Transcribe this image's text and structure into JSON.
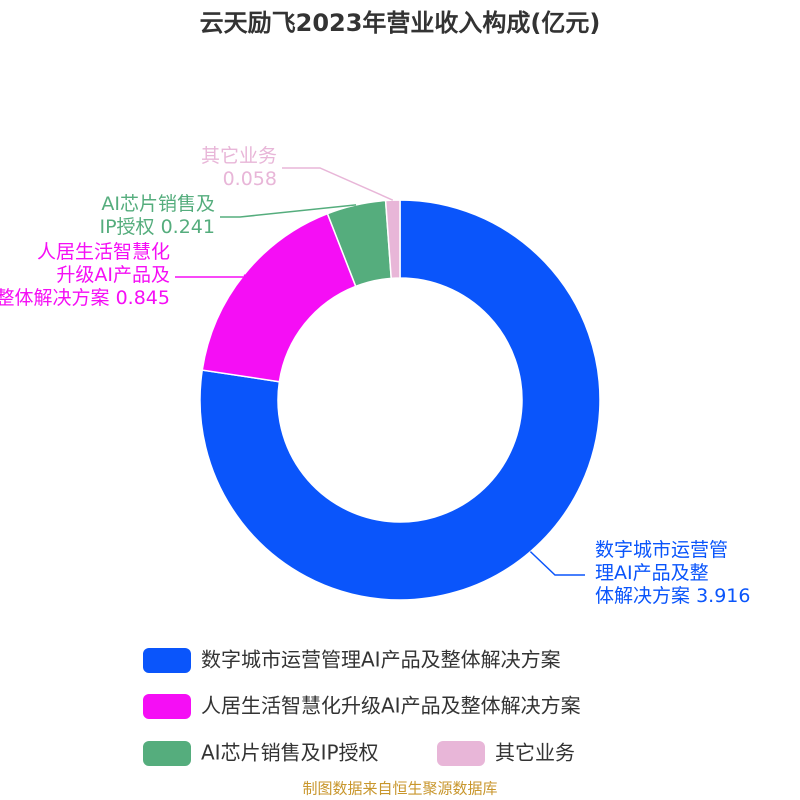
{
  "chart_data": {
    "type": "donut",
    "title": "云天励飞2023年营业收入构成(亿元)",
    "categories": [
      "数字城市运营管理AI产品及整体解决方案",
      "人居生活智慧化升级AI产品及整体解决方案",
      "AI芯片销售及IP授权",
      "其它业务"
    ],
    "values": [
      3.916,
      0.845,
      0.241,
      0.058
    ],
    "colors": [
      "#0a55fb",
      "#f50ef5",
      "#55ad7d",
      "#e8b6d8"
    ],
    "source": "制图数据来自恒生聚源数据库"
  }
}
